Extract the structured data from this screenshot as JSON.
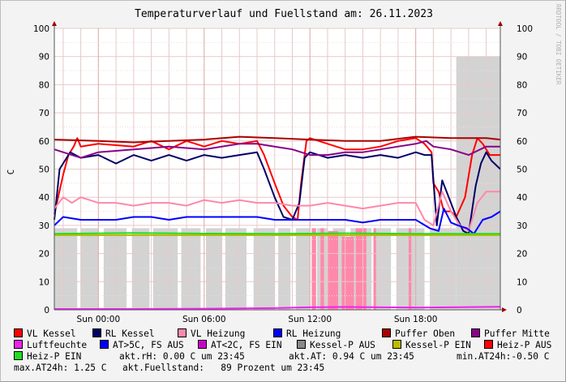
{
  "title": "Temperaturverlauf und Fuellstand am: 26.11.2023",
  "watermark": "RRDTOOL / TOBI OETIKER",
  "chart_data": {
    "type": "line",
    "title": "Temperaturverlauf und Fuellstand am: 26.11.2023",
    "ylabel": "C",
    "xlabel": "",
    "ylim": [
      0,
      100
    ],
    "y_ticks": [
      0,
      10,
      20,
      30,
      40,
      50,
      60,
      70,
      80,
      90,
      100
    ],
    "y_ticks_right": [
      0,
      10,
      20,
      30,
      40,
      50,
      60,
      70,
      80,
      90,
      100
    ],
    "x_range_hours": [
      -2.5,
      22.8
    ],
    "x_ticks": [
      {
        "hour": 0,
        "label": "Sun 00:00"
      },
      {
        "hour": 6,
        "label": "Sun 06:00"
      },
      {
        "hour": 12,
        "label": "Sun 12:00"
      },
      {
        "hour": 18,
        "label": "Sun 18:00"
      }
    ],
    "grid": true,
    "legend_position": "bottom",
    "series": [
      {
        "name": "VL Kessel",
        "color": "#ff0000",
        "x": [
          -2.5,
          -2,
          -1.7,
          -1.4,
          -1.2,
          -1,
          0,
          2,
          3,
          4,
          5,
          6,
          7,
          8,
          9,
          9.4,
          10,
          10.5,
          11,
          11.3,
          11.5,
          11.8,
          12,
          12.5,
          13,
          14,
          15,
          16,
          17,
          18,
          18.5,
          18.9,
          19,
          19.3,
          19.6,
          20,
          20.3,
          20.8,
          21.2,
          21.5,
          21.8,
          22.2,
          22.8
        ],
        "y": [
          34,
          48,
          55,
          58,
          61,
          58,
          59,
          58,
          60,
          57,
          60,
          58,
          60,
          59,
          60,
          55,
          45,
          37,
          33,
          32,
          45,
          60,
          61,
          60,
          59,
          57,
          57,
          58,
          60,
          61,
          59,
          56,
          45,
          42,
          35,
          35,
          33,
          40,
          55,
          61,
          59,
          55,
          55
        ]
      },
      {
        "name": "RL Kessel",
        "color": "#000066",
        "x": [
          -2.5,
          -2.2,
          -1.9,
          -1.6,
          -1,
          0,
          1,
          2,
          3,
          4,
          5,
          6,
          7,
          8,
          9,
          9.4,
          10,
          10.5,
          11,
          11.4,
          11.7,
          12,
          13,
          14,
          15,
          16,
          17,
          18,
          18.5,
          18.9,
          19.2,
          19.5,
          20,
          20.3,
          20.7,
          21,
          21.4,
          21.7,
          22,
          22.3,
          22.8
        ],
        "y": [
          32,
          50,
          53,
          56,
          54,
          55,
          52,
          55,
          53,
          55,
          53,
          55,
          54,
          55,
          56,
          50,
          40,
          33,
          32,
          38,
          54,
          56,
          54,
          55,
          54,
          55,
          54,
          56,
          55,
          55,
          30,
          46,
          38,
          33,
          28,
          27,
          44,
          52,
          56,
          53,
          50
        ]
      },
      {
        "name": "VL Heizung",
        "color": "#ff88aa",
        "x": [
          -2.5,
          -2,
          -1.5,
          -1,
          0,
          1,
          2,
          3,
          4,
          5,
          6,
          7,
          8,
          9,
          10,
          11,
          12,
          13,
          14,
          15,
          16,
          17,
          18,
          18.5,
          19,
          19.5,
          20,
          20.5,
          21,
          21.5,
          22,
          22.8
        ],
        "y": [
          36,
          40,
          38,
          40,
          38,
          38,
          37,
          38,
          38,
          37,
          39,
          38,
          39,
          38,
          38,
          37,
          37,
          38,
          37,
          36,
          37,
          38,
          38,
          32,
          30,
          42,
          35,
          30,
          28,
          38,
          42,
          42
        ]
      },
      {
        "name": "RL Heizung",
        "color": "#0000ff",
        "x": [
          -2.5,
          -2,
          -1,
          0,
          1,
          2,
          3,
          4,
          5,
          6,
          7,
          8,
          9,
          10,
          11,
          12,
          13,
          14,
          15,
          16,
          17,
          18,
          18.8,
          19.3,
          19.6,
          20,
          20.4,
          20.9,
          21.3,
          21.8,
          22.3,
          22.8
        ],
        "y": [
          30,
          33,
          32,
          32,
          32,
          33,
          33,
          32,
          33,
          33,
          33,
          33,
          33,
          32,
          32,
          32,
          32,
          32,
          31,
          32,
          32,
          32,
          29,
          28,
          36,
          31,
          30,
          29,
          27,
          32,
          33,
          35
        ]
      },
      {
        "name": "Puffer Oben",
        "color": "#aa0000",
        "x": [
          -2.5,
          0,
          2,
          4,
          6,
          8,
          10,
          12,
          14,
          16,
          18,
          20,
          22,
          22.8
        ],
        "y": [
          60.5,
          60,
          59.5,
          60,
          60.5,
          61.5,
          61,
          60.5,
          60,
          60,
          61.5,
          61,
          61,
          60.5
        ]
      },
      {
        "name": "Puffer Mitte",
        "color": "#880088",
        "x": [
          -2.5,
          -2,
          -1,
          0,
          2,
          4,
          6,
          8,
          9,
          10,
          11,
          12,
          13,
          14,
          15,
          16,
          17,
          18,
          18.6,
          19,
          20,
          21,
          22,
          22.8
        ],
        "y": [
          57,
          56,
          54,
          56,
          57,
          58,
          57,
          59,
          59,
          58,
          57,
          55,
          55,
          56,
          56,
          57,
          58,
          59,
          60,
          58,
          57,
          55,
          58,
          58
        ]
      },
      {
        "name": "Luftfeuchte",
        "color": "#ee22ee",
        "x": [
          -2.5,
          2,
          6,
          10,
          12,
          14,
          16,
          18,
          20,
          22.8
        ],
        "y": [
          0.3,
          0.3,
          0.4,
          0.6,
          0.9,
          1,
          0.9,
          0.8,
          0.9,
          1.1
        ]
      },
      {
        "name": "AT>5C, FS AUS",
        "color": "#0000ff",
        "x": [],
        "y": []
      },
      {
        "name": "AT<2C, FS EIN",
        "color": "#cc00cc",
        "x": [],
        "y": []
      },
      {
        "name": "Kessel-P AUS",
        "color": "#888888",
        "x": [],
        "y": []
      },
      {
        "name": "Kessel-P EIN",
        "color": "#bbbb00",
        "x": [
          -2.5,
          22.8
        ],
        "y": [
          26.5,
          26.5
        ]
      },
      {
        "name": "Heiz-P AUS",
        "color": "#ff0000",
        "x": [],
        "y": []
      },
      {
        "name": "Heiz-P EIN",
        "color": "#22dd22",
        "x": [
          -2.5,
          2,
          6,
          10,
          14,
          18,
          22.8
        ],
        "y": [
          27,
          27.3,
          27.1,
          27,
          27.2,
          27,
          27
        ]
      }
    ],
    "fill_areas": [
      {
        "name": "Kessel-P AUS",
        "color": "#d3d3d3",
        "ranges": [
          [
            -2.5,
            -1.2,
            29
          ],
          [
            -1.0,
            0.0,
            29
          ],
          [
            0.3,
            1.6,
            29
          ],
          [
            1.9,
            2.9,
            29
          ],
          [
            3.1,
            4.5,
            29
          ],
          [
            4.7,
            5.8,
            29
          ],
          [
            6.1,
            7.0,
            29
          ],
          [
            7.2,
            8.4,
            29
          ],
          [
            8.8,
            10.0,
            29
          ],
          [
            10.2,
            10.9,
            29
          ],
          [
            11.2,
            12.0,
            29
          ],
          [
            12.4,
            13.0,
            29
          ],
          [
            13.3,
            14.0,
            29
          ],
          [
            14.3,
            15.5,
            29
          ],
          [
            15.7,
            16.6,
            29
          ],
          [
            16.9,
            18.5,
            29
          ],
          [
            18.8,
            20.3,
            29
          ],
          [
            20.3,
            22.8,
            90
          ]
        ]
      },
      {
        "name": "Heiz-P AUS",
        "color": "#ff88aa",
        "ranges": [
          [
            12.1,
            12.35,
            29
          ],
          [
            12.6,
            12.8,
            29
          ],
          [
            13.0,
            13.6,
            28
          ],
          [
            13.8,
            14.5,
            26
          ],
          [
            14.6,
            15.2,
            29
          ],
          [
            15.6,
            15.75,
            29
          ],
          [
            17.6,
            17.75,
            29
          ]
        ]
      }
    ]
  },
  "legend": [
    {
      "label": "VL Kessel",
      "color": "#ff0000"
    },
    {
      "label": "RL Kessel",
      "color": "#000066"
    },
    {
      "label": "VL Heizung",
      "color": "#ff88aa"
    },
    {
      "label": "RL Heizung",
      "color": "#0000ff"
    },
    {
      "label": "Puffer Oben",
      "color": "#aa0000"
    },
    {
      "label": "Puffer Mitte",
      "color": "#880088"
    },
    {
      "label": "Luftfeuchte",
      "color": "#ee22ee"
    },
    {
      "label": "AT>5C, FS AUS",
      "color": "#0000ff"
    },
    {
      "label": "AT<2C, FS EIN",
      "color": "#cc00cc"
    },
    {
      "label": "Kessel-P AUS",
      "color": "#888888"
    },
    {
      "label": "Kessel-P EIN",
      "color": "#bbbb00"
    },
    {
      "label": "Heiz-P AUS",
      "color": "#ff0000"
    },
    {
      "label": "Heiz-P EIN",
      "color": "#22dd22"
    }
  ],
  "info": {
    "akt_rh": "akt.rH: 0.00 C um 23:45",
    "akt_at": "akt.AT: 0.94 C um 23:45",
    "min_at": "min.AT24h:-0.50 C",
    "max_at": "max.AT24h: 1.25 C",
    "fuellstand": "akt.Fuellstand:   89 Prozent um 23:45"
  }
}
